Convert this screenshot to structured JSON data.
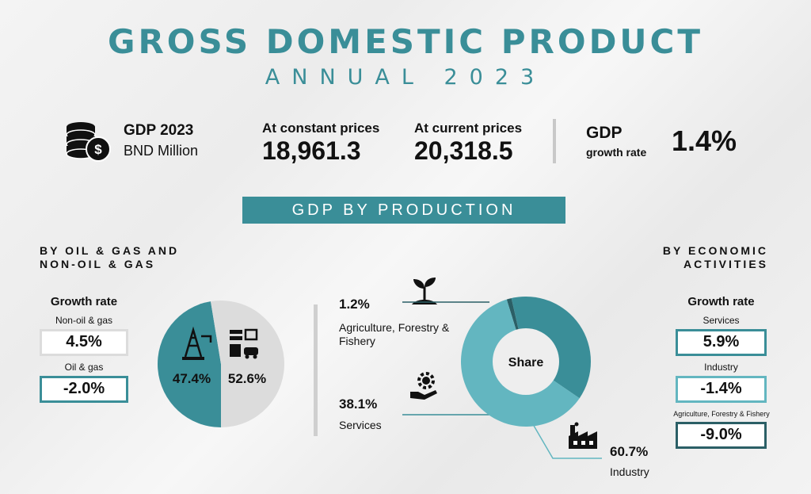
{
  "header": {
    "title": "GROSS DOMESTIC PRODUCT",
    "subtitle": "ANNUAL 2023"
  },
  "kpis": {
    "gdp_label": "GDP 2023",
    "unit": "BND Million",
    "constant_label": "At constant prices",
    "constant_value": "18,961.3",
    "current_label": "At current prices",
    "current_value": "20,318.5",
    "growth_label_1": "GDP",
    "growth_label_2": "growth rate",
    "growth_value": "1.4%"
  },
  "banner": "GDP BY PRODUCTION",
  "left_section": {
    "heading_line1": "BY OIL & GAS AND",
    "heading_line2": "NON-OIL & GAS",
    "growth_title": "Growth rate",
    "items": [
      {
        "label": "Non-oil & gas",
        "value": "4.5%",
        "color": "#dcdcdc"
      },
      {
        "label": "Oil & gas",
        "value": "-2.0%",
        "color": "#3a8e98"
      }
    ]
  },
  "right_section": {
    "heading_line1": "BY ECONOMIC",
    "heading_line2": "ACTIVITIES",
    "growth_title": "Growth rate",
    "items": [
      {
        "label": "Services",
        "value": "5.9%",
        "color": "#3a8e98"
      },
      {
        "label": "Industry",
        "value": "-1.4%",
        "color": "#63b6c0"
      },
      {
        "label": "Agriculture, Forestry & Fishery",
        "value": "-9.0%",
        "color": "#2b5f66"
      }
    ]
  },
  "chart_data": [
    {
      "type": "pie",
      "categories": [
        "Oil & gas",
        "Non-oil & gas"
      ],
      "values": [
        47.4,
        52.6
      ],
      "labels": [
        "47.4%",
        "52.6%"
      ],
      "colors": [
        "#3a8e98",
        "#dcdcdc"
      ]
    },
    {
      "type": "pie",
      "title": "Share",
      "categories": [
        "Agriculture, Forestry & Fishery",
        "Services",
        "Industry"
      ],
      "values": [
        1.2,
        38.1,
        60.7
      ],
      "labels": [
        "1.2%",
        "38.1%",
        "60.7%"
      ],
      "colors": [
        "#2b5f66",
        "#3a8e98",
        "#63b6c0"
      ]
    }
  ]
}
